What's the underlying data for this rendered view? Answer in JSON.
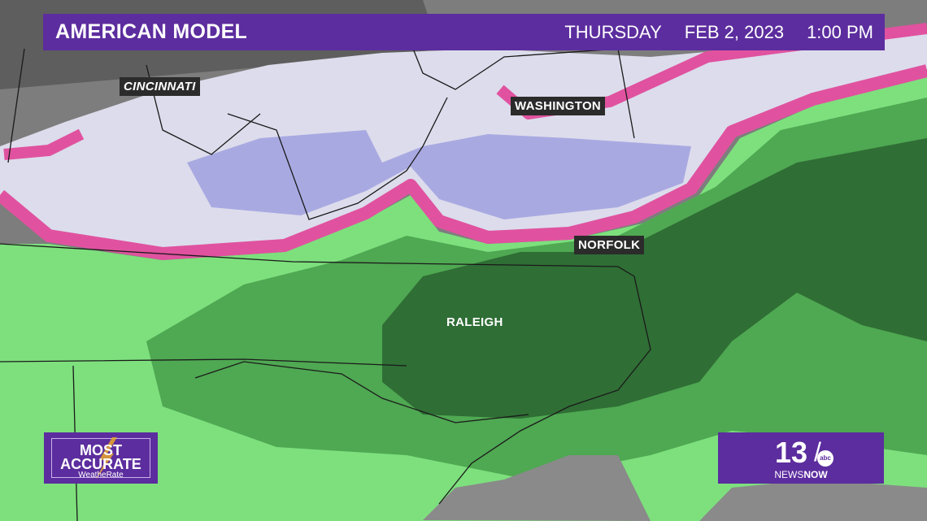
{
  "header": {
    "title": "AMERICAN MODEL",
    "day": "THURSDAY",
    "date": "FEB 2, 2023",
    "time": "1:00 PM"
  },
  "cities": [
    {
      "name": "CINCINNATI"
    },
    {
      "name": "WASHINGTON"
    },
    {
      "name": "NORFOLK"
    },
    {
      "name": "RALEIGH"
    }
  ],
  "legend_colors": {
    "snow_light": "#dcdcec",
    "snow_heavy": "#a9a9e2",
    "mix": "#e0529f",
    "rain_light": "#7de07d",
    "rain_medium": "#4fa852",
    "rain_heavy": "#2f6e35",
    "no_precip": "#808080"
  },
  "badge_left": {
    "line1": "MOST",
    "line2": "ACCURATE",
    "line3": "WeatheRate"
  },
  "badge_right": {
    "number": "13",
    "network": "abc",
    "brand_a": "NEWS",
    "brand_b": "NOW"
  }
}
